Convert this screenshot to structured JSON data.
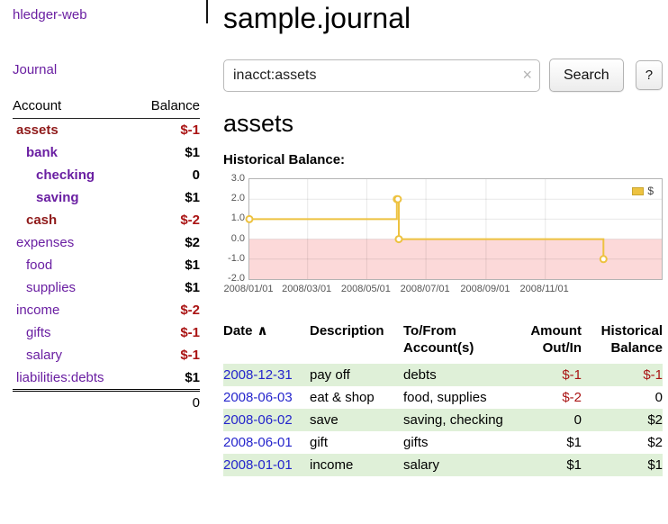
{
  "sidebar": {
    "brand": "hledger-web",
    "nav": [
      {
        "label": "Journal"
      }
    ],
    "accounts_table": {
      "headers": [
        "Account",
        "Balance"
      ],
      "rows": [
        {
          "name": "assets",
          "depth": 1,
          "balance": "$-1",
          "bold": true,
          "name_negative": true,
          "balance_negative": true
        },
        {
          "name": "bank",
          "depth": 2,
          "balance": "$1",
          "bold": true,
          "name_negative": false,
          "balance_negative": false
        },
        {
          "name": "checking",
          "depth": 3,
          "balance": "0",
          "bold": true,
          "name_negative": false,
          "balance_negative": false
        },
        {
          "name": "saving",
          "depth": 3,
          "balance": "$1",
          "bold": true,
          "name_negative": false,
          "balance_negative": false
        },
        {
          "name": "cash",
          "depth": 2,
          "balance": "$-2",
          "bold": true,
          "name_negative": true,
          "balance_negative": true
        },
        {
          "name": "expenses",
          "depth": 1,
          "balance": "$2",
          "bold": false,
          "name_negative": false,
          "balance_negative": false
        },
        {
          "name": "food",
          "depth": 2,
          "balance": "$1",
          "bold": false,
          "name_negative": false,
          "balance_negative": false
        },
        {
          "name": "supplies",
          "depth": 2,
          "balance": "$1",
          "bold": false,
          "name_negative": false,
          "balance_negative": false
        },
        {
          "name": "income",
          "depth": 1,
          "balance": "$-2",
          "bold": false,
          "name_negative": false,
          "balance_negative": true
        },
        {
          "name": "gifts",
          "depth": 2,
          "balance": "$-1",
          "bold": false,
          "name_negative": false,
          "balance_negative": true
        },
        {
          "name": "salary",
          "depth": 2,
          "balance": "$-1",
          "bold": false,
          "name_negative": false,
          "balance_negative": true
        },
        {
          "name": "liabilities:debts",
          "depth": 1,
          "balance": "$1",
          "bold": false,
          "name_negative": false,
          "balance_negative": false
        }
      ],
      "total": "0"
    }
  },
  "header": {
    "title": "sample.journal"
  },
  "search": {
    "value": "inacct:assets",
    "clear_icon": "×",
    "button": "Search",
    "help_button": "?"
  },
  "main": {
    "account_heading": "assets",
    "chart_title": "Historical Balance:"
  },
  "chart_data": {
    "type": "line",
    "title": "Historical Balance",
    "steps": true,
    "x_type": "date",
    "xlim": [
      "2008-01-01",
      "2009-03-01"
    ],
    "ylim": [
      -2,
      3
    ],
    "grid": true,
    "legend_position": "top-right",
    "negative_region_color": "#fcd9d9",
    "y_ticks": [
      "3.0",
      "2.0",
      "1.0",
      "0.0",
      "-1.0",
      "-2.0"
    ],
    "x_ticks": [
      {
        "date": "2008-01-01",
        "label": "2008/01/01"
      },
      {
        "date": "2008-03-01",
        "label": "2008/03/01"
      },
      {
        "date": "2008-05-01",
        "label": "2008/05/01"
      },
      {
        "date": "2008-07-01",
        "label": "2008/07/01"
      },
      {
        "date": "2008-09-01",
        "label": "2008/09/01"
      },
      {
        "date": "2008-11-01",
        "label": "2008/11/01"
      }
    ],
    "series": [
      {
        "name": "$",
        "color": "#edc240",
        "points": [
          {
            "date": "2008-01-01",
            "value": 1
          },
          {
            "date": "2008-06-01",
            "value": 2
          },
          {
            "date": "2008-06-02",
            "value": 2
          },
          {
            "date": "2008-06-03",
            "value": 0
          },
          {
            "date": "2008-12-31",
            "value": -1
          }
        ]
      }
    ]
  },
  "register": {
    "sort_icon": "∧",
    "headers": [
      {
        "lines": [
          "Date"
        ]
      },
      {
        "lines": [
          "Description"
        ]
      },
      {
        "lines": [
          "To/From",
          "Account(s)"
        ]
      },
      {
        "lines": [
          "Amount",
          "Out/In"
        ]
      },
      {
        "lines": [
          "Historical",
          "Balance"
        ]
      }
    ],
    "rows": [
      {
        "date": "2008-12-31",
        "description": "pay off",
        "accounts": "debts",
        "amount": "$-1",
        "amount_negative": true,
        "balance": "$-1",
        "balance_negative": true
      },
      {
        "date": "2008-06-03",
        "description": "eat & shop",
        "accounts": "food, supplies",
        "amount": "$-2",
        "amount_negative": true,
        "balance": "0",
        "balance_negative": false
      },
      {
        "date": "2008-06-02",
        "description": "save",
        "accounts": "saving, checking",
        "amount": "0",
        "amount_negative": false,
        "balance": "$2",
        "balance_negative": false
      },
      {
        "date": "2008-06-01",
        "description": "gift",
        "accounts": "gifts",
        "amount": "$1",
        "amount_negative": false,
        "balance": "$2",
        "balance_negative": false
      },
      {
        "date": "2008-01-01",
        "description": "income",
        "accounts": "salary",
        "amount": "$1",
        "amount_negative": false,
        "balance": "$1",
        "balance_negative": false
      }
    ]
  },
  "colors": {
    "link_purple": "#6a1fa2",
    "link_blue": "#2525cc",
    "negative_red": "#aa1414",
    "row_green": "#dff0d8",
    "series_yellow": "#edc240"
  }
}
